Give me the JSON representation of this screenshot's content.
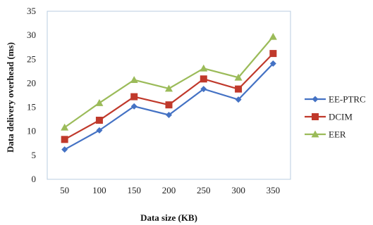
{
  "chart_data": {
    "type": "line",
    "title": "",
    "xlabel": "Data size (KB)",
    "ylabel": "Data delivery overhead (ms)",
    "categories": [
      "50",
      "100",
      "150",
      "200",
      "250",
      "300",
      "350"
    ],
    "ylim": [
      0,
      35
    ],
    "yticks": [
      0,
      5,
      10,
      15,
      20,
      25,
      30,
      35
    ],
    "grid": false,
    "legend_position": "right",
    "series": [
      {
        "name": "EE-PTRC",
        "color": "#4472C4",
        "marker": "diamond",
        "values": [
          6.2,
          10.2,
          15.2,
          13.4,
          18.8,
          16.6,
          24.1
        ]
      },
      {
        "name": "DCIM",
        "color": "#C0392B",
        "marker": "square",
        "values": [
          8.3,
          12.3,
          17.2,
          15.5,
          20.9,
          18.8,
          26.2
        ]
      },
      {
        "name": "EER",
        "color": "#9BBB59",
        "marker": "triangle",
        "values": [
          10.8,
          15.9,
          20.7,
          18.9,
          23.1,
          21.2,
          29.7
        ]
      }
    ]
  }
}
